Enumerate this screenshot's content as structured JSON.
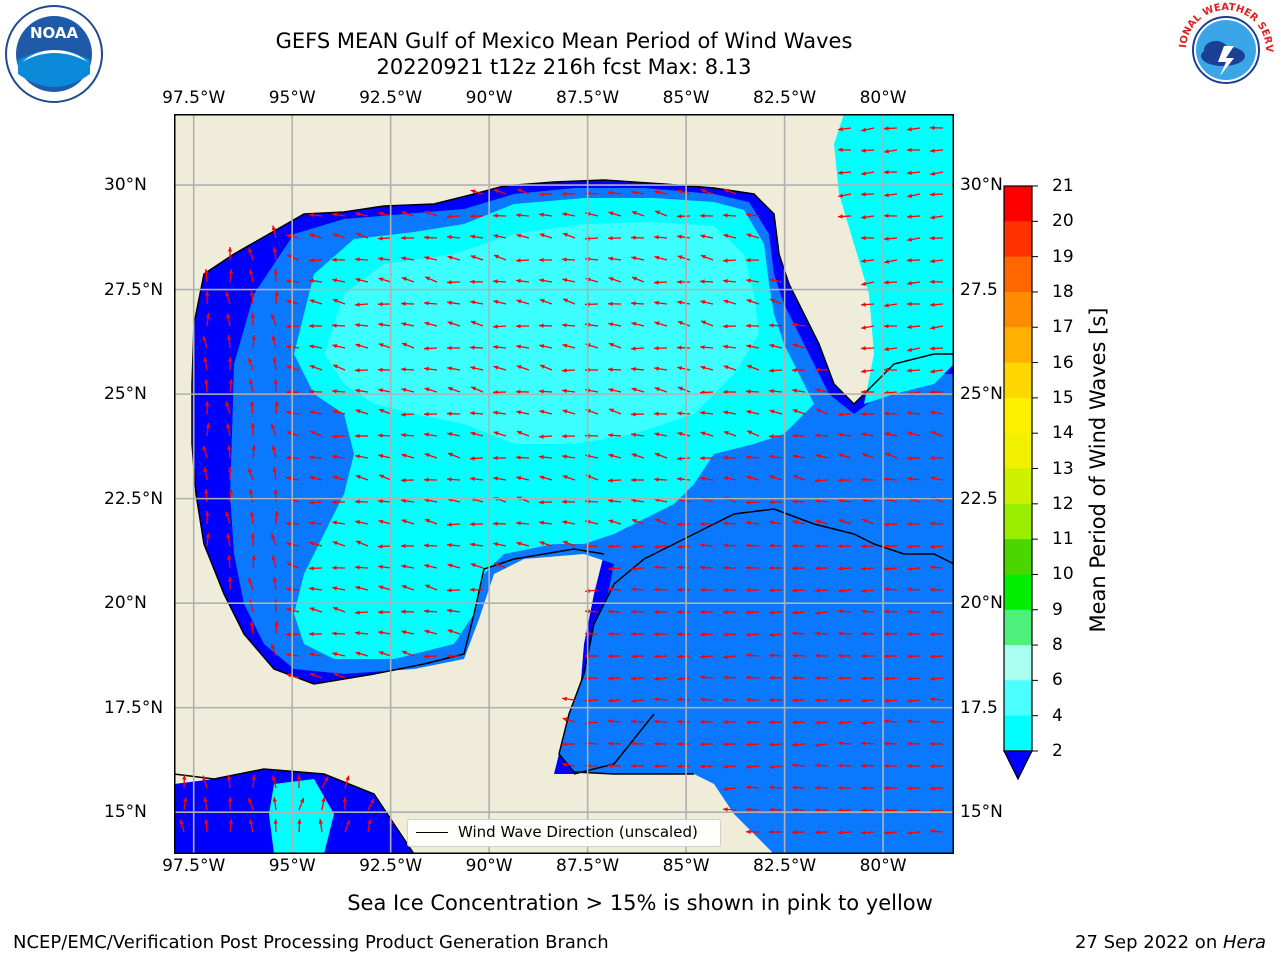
{
  "title": {
    "line1": "GEFS MEAN Gulf of Mexico Mean Period of Wind Waves",
    "line2": "20220921 t12z 216h fcst   Max: 8.13"
  },
  "logos": {
    "left": {
      "name": "noaa-logo",
      "text": "NOAA"
    },
    "right": {
      "name": "nws-logo",
      "text": "NATIONAL WEATHER SERVICE"
    }
  },
  "map": {
    "lon_ticks": [
      "97.5°W",
      "95°W",
      "92.5°W",
      "90°W",
      "87.5°W",
      "85°W",
      "82.5°W",
      "80°W"
    ],
    "lat_ticks_left": [
      "30°N",
      "27.5°N",
      "25°N",
      "22.5°N",
      "20°N",
      "17.5°N",
      "15°N"
    ],
    "lat_ticks_right": [
      "30°N",
      "27.5",
      "25°N",
      "22.5",
      "20°N",
      "17.5",
      "15°N"
    ],
    "lon_range": [
      -98,
      -78.2
    ],
    "lat_range": [
      14,
      31.7
    ],
    "land_color": "#efedda",
    "grid_color": "#b0b0b0",
    "vector_color": "#ff0000",
    "legend_label": "Wind Wave Direction (unscaled)"
  },
  "colorbar": {
    "title": "Mean Period of Wind Waves [s]",
    "labels": [
      "21",
      "20",
      "19",
      "18",
      "17",
      "16",
      "15",
      "14",
      "13",
      "12",
      "11",
      "10",
      "9",
      "8",
      "6",
      "4",
      "2"
    ],
    "colors": [
      "#ff0000",
      "#ff3300",
      "#ff6600",
      "#ff8c00",
      "#ffb000",
      "#ffd700",
      "#fff000",
      "#f0f000",
      "#ccf000",
      "#99ee00",
      "#4cd600",
      "#00ee00",
      "#4cf07a",
      "#a8fff0",
      "#4cffff",
      "#00ffff",
      "#0077ff"
    ],
    "extend_color": "#0000ff"
  },
  "footer": {
    "note": "Sea Ice Concentration > 15% is shown in pink to yellow",
    "left": "NCEP/EMC/Verification Post Processing Product Generation Branch",
    "right_date": "27 Sep 2022 on ",
    "right_host": "Hera"
  }
}
